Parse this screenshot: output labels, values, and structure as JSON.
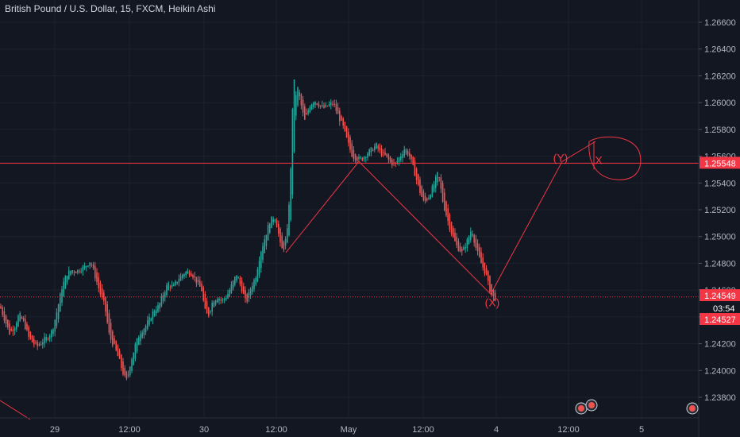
{
  "header": {
    "title": "British Pound / U.S. Dollar, 15, FXCM, Heikin Ashi"
  },
  "colors": {
    "background": "#131722",
    "grid": "#1e222d",
    "up": "#26a69a",
    "down": "#ef5350",
    "drawing": "#f23645",
    "axis_text": "#b2b5be"
  },
  "chart_data": {
    "type": "candlestick",
    "title": "British Pound / U.S. Dollar, 15, FXCM, Heikin Ashi",
    "ylim": [
      1.237,
      1.2674
    ],
    "y_ticks": [
      "1.26600",
      "1.26400",
      "1.26200",
      "1.26000",
      "1.25800",
      "1.25600",
      "1.25400",
      "1.25200",
      "1.25000",
      "1.24800",
      "1.24600",
      "1.24400",
      "1.24200",
      "1.24000",
      "1.23800"
    ],
    "x_ticks": [
      "29",
      "12:00",
      "30",
      "12:00",
      "May",
      "12:00",
      "4",
      "12:00",
      "5"
    ],
    "price_path": [
      [
        0,
        1.2448
      ],
      [
        6,
        1.2438
      ],
      [
        12,
        1.2428
      ],
      [
        18,
        1.2432
      ],
      [
        24,
        1.2442
      ],
      [
        30,
        1.2436
      ],
      [
        36,
        1.2425
      ],
      [
        42,
        1.242
      ],
      [
        48,
        1.2418
      ],
      [
        54,
        1.2422
      ],
      [
        60,
        1.2425
      ],
      [
        66,
        1.243
      ],
      [
        72,
        1.2445
      ],
      [
        78,
        1.2462
      ],
      [
        84,
        1.2472
      ],
      [
        90,
        1.2475
      ],
      [
        96,
        1.2474
      ],
      [
        102,
        1.2476
      ],
      [
        108,
        1.2478
      ],
      [
        114,
        1.2482
      ],
      [
        120,
        1.247
      ],
      [
        126,
        1.2458
      ],
      [
        132,
        1.2448
      ],
      [
        138,
        1.2425
      ],
      [
        144,
        1.2418
      ],
      [
        150,
        1.2408
      ],
      [
        156,
        1.2396
      ],
      [
        160,
        1.2392
      ],
      [
        164,
        1.2405
      ],
      [
        170,
        1.2418
      ],
      [
        176,
        1.2428
      ],
      [
        182,
        1.2432
      ],
      [
        188,
        1.2438
      ],
      [
        194,
        1.2445
      ],
      [
        200,
        1.2448
      ],
      [
        206,
        1.2458
      ],
      [
        212,
        1.2465
      ],
      [
        218,
        1.2462
      ],
      [
        224,
        1.2468
      ],
      [
        230,
        1.2472
      ],
      [
        236,
        1.2474
      ],
      [
        242,
        1.2472
      ],
      [
        248,
        1.2466
      ],
      [
        254,
        1.246
      ],
      [
        258,
        1.2445
      ],
      [
        262,
        1.244
      ],
      [
        268,
        1.2452
      ],
      [
        274,
        1.2455
      ],
      [
        280,
        1.2452
      ],
      [
        286,
        1.2456
      ],
      [
        292,
        1.2464
      ],
      [
        298,
        1.2472
      ],
      [
        304,
        1.2462
      ],
      [
        310,
        1.245
      ],
      [
        316,
        1.2462
      ],
      [
        322,
        1.247
      ],
      [
        328,
        1.2488
      ],
      [
        334,
        1.25
      ],
      [
        340,
        1.2512
      ],
      [
        346,
        1.2515
      ],
      [
        350,
        1.2505
      ],
      [
        354,
        1.249
      ],
      [
        358,
        1.2492
      ],
      [
        362,
        1.2505
      ],
      [
        366,
        1.2545
      ],
      [
        368,
        1.259
      ],
      [
        370,
        1.262
      ],
      [
        372,
        1.2605
      ],
      [
        376,
        1.2612
      ],
      [
        380,
        1.2595
      ],
      [
        384,
        1.2586
      ],
      [
        390,
        1.2598
      ],
      [
        396,
        1.2602
      ],
      [
        402,
        1.2598
      ],
      [
        408,
        1.2596
      ],
      [
        414,
        1.2598
      ],
      [
        420,
        1.26
      ],
      [
        426,
        1.259
      ],
      [
        432,
        1.2582
      ],
      [
        438,
        1.257
      ],
      [
        444,
        1.256
      ],
      [
        450,
        1.2558
      ],
      [
        456,
        1.2558
      ],
      [
        462,
        1.2562
      ],
      [
        468,
        1.2565
      ],
      [
        474,
        1.2568
      ],
      [
        480,
        1.2562
      ],
      [
        486,
        1.256
      ],
      [
        492,
        1.2555
      ],
      [
        498,
        1.2554
      ],
      [
        504,
        1.256
      ],
      [
        510,
        1.2566
      ],
      [
        516,
        1.256
      ],
      [
        522,
        1.2548
      ],
      [
        528,
        1.2535
      ],
      [
        534,
        1.2525
      ],
      [
        540,
        1.253
      ],
      [
        546,
        1.2538
      ],
      [
        552,
        1.2548
      ],
      [
        558,
        1.2525
      ],
      [
        564,
        1.2512
      ],
      [
        570,
        1.25
      ],
      [
        576,
        1.2492
      ],
      [
        582,
        1.2488
      ],
      [
        588,
        1.2496
      ],
      [
        594,
        1.2506
      ],
      [
        600,
        1.249
      ],
      [
        606,
        1.248
      ],
      [
        612,
        1.2472
      ],
      [
        616,
        1.2462
      ],
      [
        620,
        1.2455
      ],
      [
        624,
        1.2454
      ]
    ],
    "horizontal_lines": [
      {
        "price": 1.25548,
        "label": "1.25548",
        "style": "solid"
      },
      {
        "price": 1.24549,
        "label": "1.24549",
        "style": "dotted"
      }
    ],
    "price_tags": [
      {
        "price": 1.25548,
        "label": "1.25548"
      },
      {
        "price": 1.24549,
        "label": "1.24549"
      },
      {
        "price": 1.2447,
        "label": "03:54",
        "kind": "countdown"
      },
      {
        "price": 1.24527,
        "label": "1.24527"
      }
    ],
    "wave_path": [
      [
        360,
        1.2488
      ],
      [
        452,
        1.2556
      ],
      [
        618,
        1.2457
      ],
      [
        708,
        1.2556
      ],
      [
        750,
        1.2571
      ]
    ],
    "annotations": [
      {
        "text": "(Y)",
        "x": 706,
        "price": 1.2559
      },
      {
        "text": "(X)",
        "x": 620,
        "price": 1.2451
      },
      {
        "text": "X",
        "x": 754,
        "price": 1.2557
      }
    ]
  }
}
